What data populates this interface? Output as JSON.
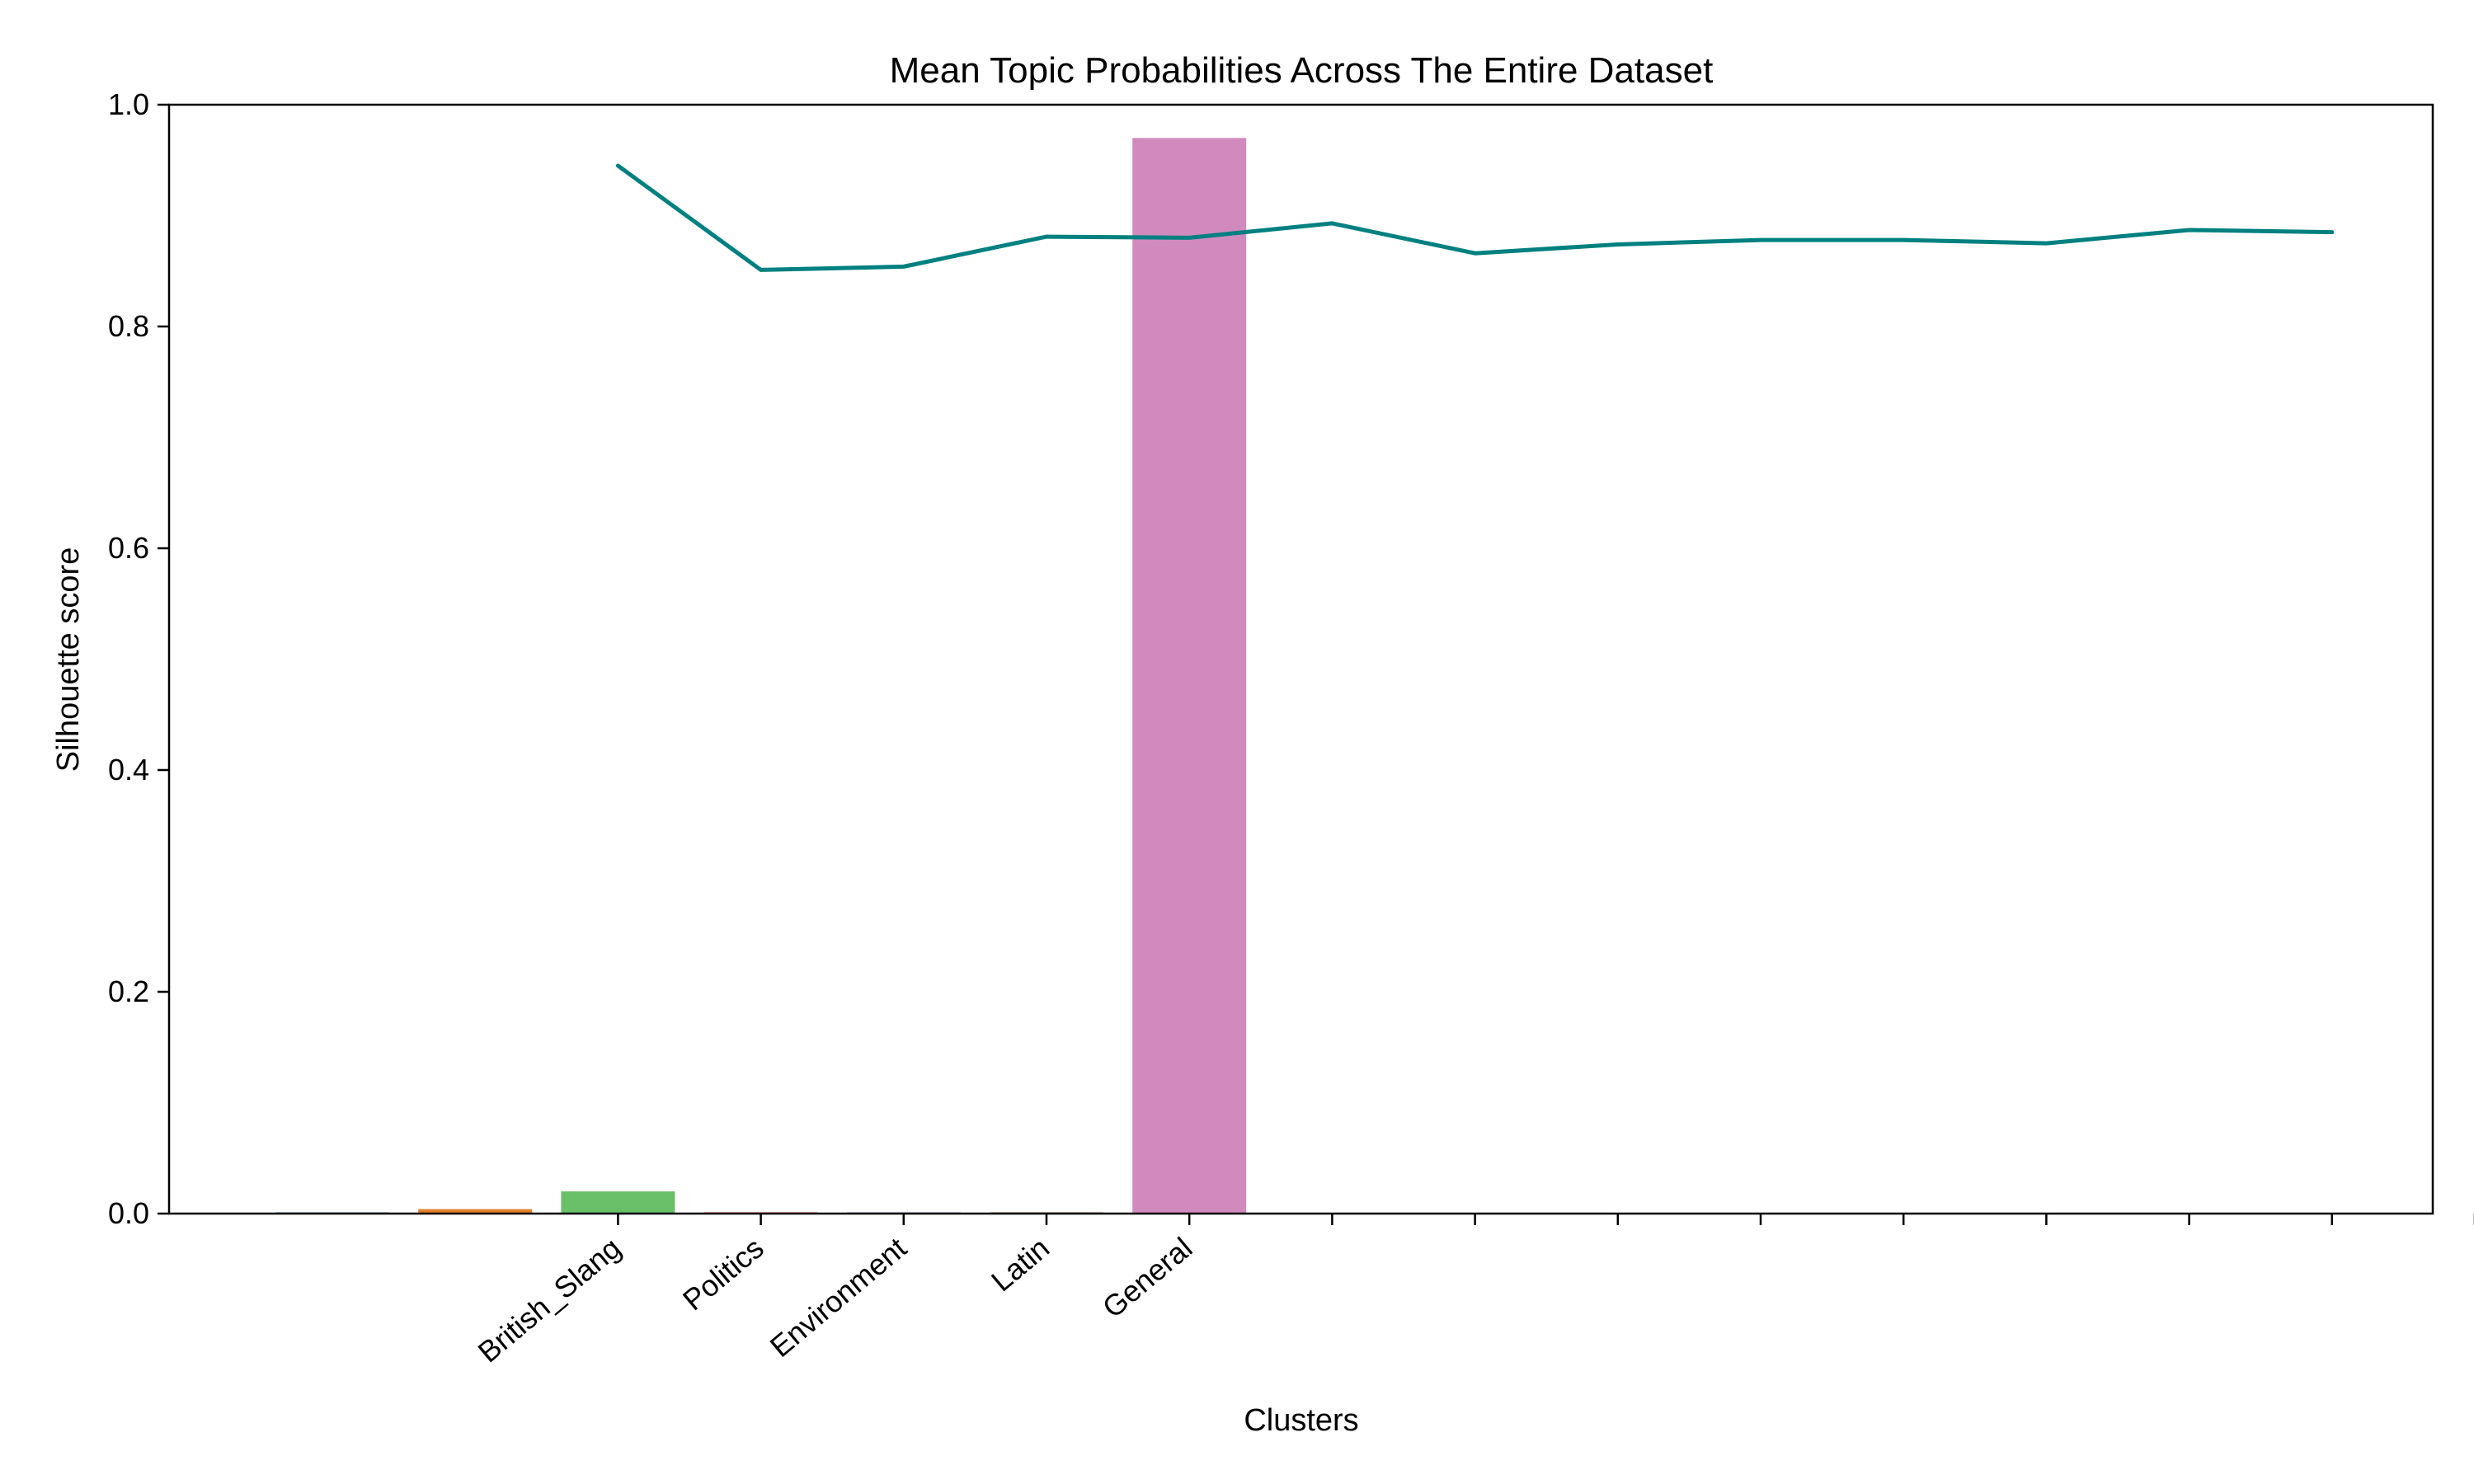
{
  "chart_data": {
    "type": "bar",
    "title": "Mean Topic Probabilities Across The Entire Dataset",
    "xlabel": "Clusters",
    "ylabel": "Silhouette score",
    "ylim": [
      0,
      1.0
    ],
    "yticks": [
      "0.0",
      "0.2",
      "0.4",
      "0.6",
      "0.8",
      "1.0"
    ],
    "grid": false,
    "legend": "none",
    "categories": [
      "",
      "",
      "British_Slang",
      "Politics",
      "Environment",
      "Latin",
      "General",
      "",
      "",
      "",
      "",
      "",
      "",
      "",
      "",
      ""
    ],
    "bars": {
      "values": [
        0.001,
        0.004,
        0.02,
        0.0,
        0.001,
        0.001,
        0.97
      ],
      "colors": [
        "#4c72b0",
        "#e1812c",
        "#6abf69",
        "#d62728",
        "#9467bd",
        "#8c564b",
        "#d18abe"
      ]
    },
    "line": {
      "x_start_index": 2,
      "values": [
        0.945,
        0.851,
        0.854,
        0.881,
        0.88,
        0.893,
        0.866,
        0.874,
        0.878,
        0.878,
        0.875,
        0.887,
        0.885
      ],
      "color": "#008080"
    }
  }
}
